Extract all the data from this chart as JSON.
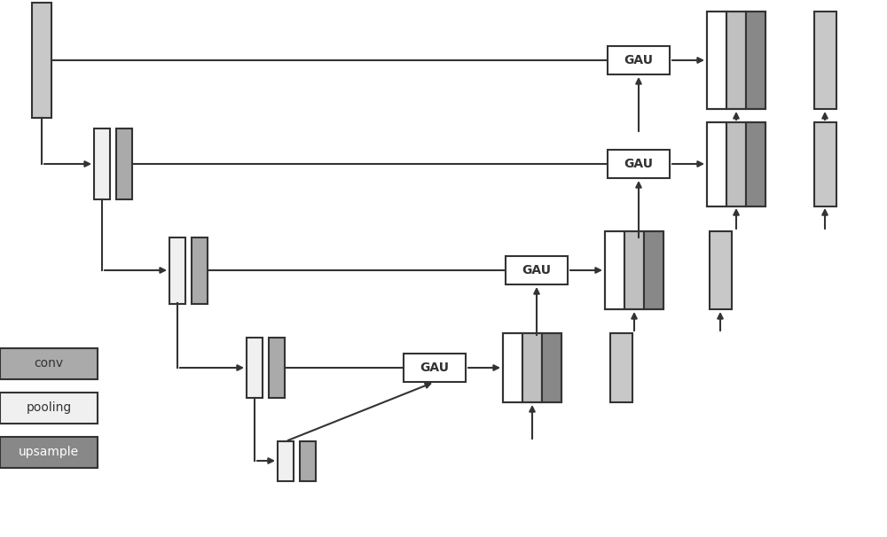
{
  "bg_color": "#ffffff",
  "lc": "#333333",
  "conv_color": "#aaaaaa",
  "pool_color": "#f0f0f0",
  "upsample_color": "#888888",
  "gau_fill": "#ffffff",
  "gau_edge": "#333333",
  "conv_label": "conv",
  "pool_label": "pooling",
  "up_label": "upsample"
}
